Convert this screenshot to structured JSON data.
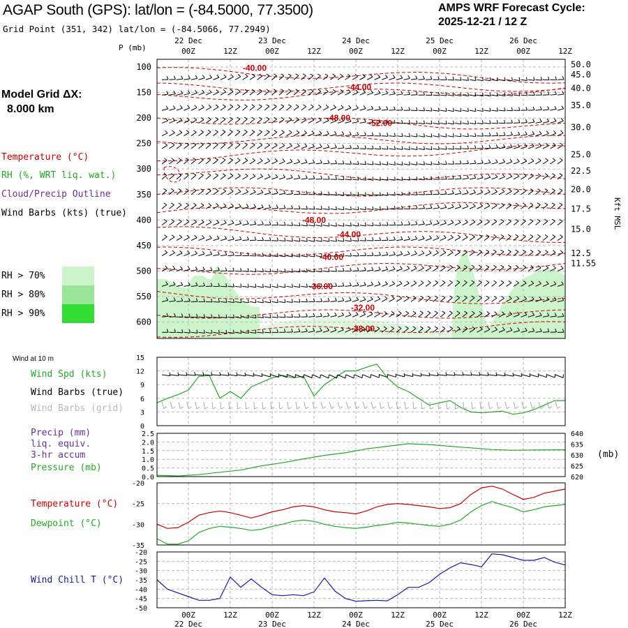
{
  "header": {
    "title": "AGAP South (GPS):  lat/lon = (-84.5000, 77.3500)",
    "grid_point": "Grid Point (351, 342) lat/lon = (-84.5066, 77.2949)",
    "forecast_label": "AMPS WRF Forecast Cycle:",
    "cycle": "2025-12-21 / 12  Z"
  },
  "model": {
    "grid_label": "Model Grid ΔX:",
    "grid_value": "8.000 km"
  },
  "colors": {
    "temperature": "#cc0000",
    "rh": "#22aa22",
    "cloud": "#663399",
    "wind": "#000000",
    "grid_barbs": "#aaaaaa",
    "precip": "#663399",
    "pressure": "#22aa22",
    "dewpoint": "#22aa22",
    "windchill": "#1a1aa0",
    "rh70": "#ccf5cc",
    "rh80": "#99e699",
    "rh90": "#33dd33"
  },
  "legend": {
    "temperature": "Temperature (°C)",
    "rh": "RH (%, WRT liq. wat.)",
    "cloud": "Cloud/Precip Outline",
    "wind": "Wind Barbs (kts) (true)",
    "rh_items": [
      "RH > 70%",
      "RH > 80%",
      "RH > 90%"
    ]
  },
  "chart_data": [
    {
      "type": "heatmap",
      "name": "upper-air time-height cross section",
      "yaxis_title": "P (mb)",
      "pressure_ticks": [
        "100",
        "150",
        "200",
        "250",
        "300",
        "350",
        "400",
        "450",
        "500",
        "550",
        "600"
      ],
      "pressure_range": [
        85,
        632
      ],
      "height_ticks": [
        "50.0",
        "45.0",
        "40.0",
        "35.0",
        "30.0",
        "25.0",
        "22.5",
        "20.0",
        "17.5",
        "15.0",
        "12.5",
        "11.55"
      ],
      "height_tick_pressures": [
        95,
        115,
        142,
        175,
        218,
        272,
        304,
        340,
        378,
        418,
        465,
        485
      ],
      "height_label": "Kft MSL",
      "time_ticks": [
        "00Z",
        "12Z",
        "00Z",
        "12Z",
        "00Z",
        "12Z",
        "00Z",
        "12Z",
        "00Z",
        "12Z"
      ],
      "time_tick_hours": [
        12,
        24,
        36,
        48,
        60,
        72,
        84,
        96,
        108,
        120
      ],
      "date_labels": [
        {
          "hour": 12,
          "text": "22 Dec"
        },
        {
          "hour": 36,
          "text": "23 Dec"
        },
        {
          "hour": 60,
          "text": "24 Dec"
        },
        {
          "hour": 84,
          "text": "25 Dec"
        },
        {
          "hour": 108,
          "text": "26 Dec"
        }
      ],
      "x_range": [
        3,
        120
      ],
      "temperature_labels": [
        {
          "text": "-40.00",
          "hour": 31,
          "p": 102
        },
        {
          "text": "-44.00",
          "hour": 61,
          "p": 140
        },
        {
          "text": "-48.00",
          "hour": 55,
          "p": 200
        },
        {
          "text": "-52.00",
          "hour": 67,
          "p": 210
        },
        {
          "text": "-48.00",
          "hour": 48,
          "p": 400
        },
        {
          "text": "-44.00",
          "hour": 58,
          "p": 428
        },
        {
          "text": "-40.00",
          "hour": 53,
          "p": 473
        },
        {
          "text": "-36.00",
          "hour": 50,
          "p": 530
        },
        {
          "text": "-32.00",
          "hour": 62,
          "p": 572
        },
        {
          "text": "-28.00",
          "hour": 62,
          "p": 613
        }
      ],
      "barb_levels": [
        125,
        155,
        185,
        210,
        235,
        260,
        290,
        320,
        350,
        378,
        410,
        440,
        470,
        500,
        530,
        560,
        590,
        620
      ]
    },
    {
      "type": "line",
      "name": "10 m wind speed",
      "panel_title": "Wind at 10 m",
      "series_label": "Wind Spd (kts)",
      "barbs_true_label": "Wind Barbs (true)",
      "barbs_grid_label": "Wind Barbs (grid)",
      "ylim": [
        0,
        15
      ],
      "yticks": [
        "0",
        "3",
        "6",
        "9",
        "12",
        "15"
      ],
      "hours": [
        3,
        6,
        9,
        12,
        15,
        18,
        21,
        24,
        27,
        30,
        33,
        36,
        39,
        42,
        45,
        48,
        51,
        54,
        57,
        60,
        63,
        66,
        69,
        72,
        75,
        78,
        81,
        84,
        87,
        90,
        93,
        96,
        99,
        102,
        105,
        108,
        111,
        114,
        117,
        120
      ],
      "values": [
        5,
        6,
        6.8,
        7.8,
        10.8,
        11,
        6,
        7.5,
        6,
        8.5,
        9.5,
        10.5,
        11,
        10.5,
        10.8,
        6.5,
        9,
        10.5,
        12,
        12,
        12.8,
        13.5,
        10.5,
        8.5,
        7.5,
        6,
        4.5,
        5,
        5.5,
        4,
        3,
        2.8,
        3,
        3.2,
        2.5,
        2.8,
        3.5,
        4.5,
        5.5,
        5.5
      ]
    },
    {
      "type": "line",
      "name": "precip and pressure",
      "precip_label": "Precip (mm)",
      "precip_label2": "liq. equiv.",
      "precip_label3": "3-hr accum",
      "pressure_label": "Pressure (mb)",
      "unit_label": "(mb)",
      "left_ylim": [
        0,
        2.5
      ],
      "left_ticks": [
        "0.0",
        "0.5",
        "1.0",
        "1.5",
        "2.0",
        "2.5"
      ],
      "right_ylim": [
        620,
        640
      ],
      "right_ticks": [
        "620",
        "625",
        "630",
        "635",
        "640"
      ],
      "hours": [
        3,
        9,
        15,
        21,
        27,
        33,
        39,
        45,
        51,
        57,
        63,
        69,
        75,
        81,
        87,
        93,
        99,
        105,
        111,
        117,
        120
      ],
      "pressure": [
        620.6,
        620.3,
        620.9,
        622,
        623,
        625,
        626.4,
        628.2,
        629.8,
        631,
        632.8,
        634,
        635.2,
        634.8,
        634,
        633.3,
        632.5,
        632.2,
        632.3,
        632.4,
        632.4
      ]
    },
    {
      "type": "line",
      "name": "temperature and dewpoint",
      "temp_label": "Temperature (°C)",
      "dew_label": "Dewpoint (°C)",
      "ylim": [
        -35,
        -20
      ],
      "yticks": [
        "-35",
        "-30",
        "-25",
        "-20"
      ],
      "hours": [
        3,
        6,
        9,
        12,
        15,
        18,
        21,
        24,
        27,
        30,
        33,
        36,
        39,
        42,
        45,
        48,
        51,
        54,
        57,
        60,
        63,
        66,
        69,
        72,
        75,
        78,
        81,
        84,
        87,
        90,
        93,
        96,
        99,
        102,
        105,
        108,
        111,
        114,
        117,
        120
      ],
      "temperature": [
        -30,
        -31,
        -30.8,
        -29.5,
        -27.8,
        -27.2,
        -26.8,
        -27.2,
        -27.8,
        -28.5,
        -27.8,
        -27,
        -26.5,
        -25.8,
        -25.5,
        -25.8,
        -26.5,
        -27,
        -27.2,
        -27.5,
        -26.8,
        -25.8,
        -25.2,
        -25,
        -25.2,
        -25.5,
        -25.8,
        -26.2,
        -26,
        -25,
        -22.8,
        -21.2,
        -20.8,
        -21.5,
        -22.8,
        -24,
        -23.5,
        -22.5,
        -22,
        -21.5
      ],
      "dewpoint": [
        -33.5,
        -34.8,
        -34.8,
        -34,
        -32,
        -31,
        -30.5,
        -30.7,
        -31,
        -31.5,
        -31.2,
        -30.5,
        -30,
        -29.3,
        -29,
        -29.3,
        -30,
        -30.5,
        -30.8,
        -31,
        -30.7,
        -30.3,
        -30,
        -29.5,
        -29.7,
        -30,
        -30.3,
        -30.5,
        -30,
        -29,
        -27,
        -25.5,
        -24.5,
        -25.3,
        -26,
        -27,
        -26.5,
        -25.8,
        -25.5,
        -25.2
      ]
    },
    {
      "type": "line",
      "name": "wind chill",
      "label": "Wind Chill T (°C)",
      "ylim": [
        -50,
        -20
      ],
      "yticks": [
        "-50",
        "-45",
        "-40",
        "-35",
        "-30",
        "-25",
        "-20"
      ],
      "hours": [
        3,
        6,
        9,
        12,
        15,
        18,
        21,
        24,
        27,
        30,
        33,
        36,
        39,
        42,
        45,
        48,
        51,
        54,
        57,
        60,
        63,
        66,
        69,
        72,
        75,
        78,
        81,
        84,
        87,
        90,
        93,
        96,
        99,
        102,
        105,
        108,
        111,
        114,
        117,
        120
      ],
      "values": [
        -35,
        -40,
        -42,
        -44,
        -46,
        -46,
        -45,
        -33.5,
        -39,
        -34.5,
        -39,
        -43,
        -43.5,
        -43,
        -43.5,
        -41.5,
        -34,
        -41,
        -45,
        -46.5,
        -46.2,
        -46,
        -46.3,
        -43,
        -39,
        -39,
        -36.5,
        -32,
        -28.5,
        -25.8,
        -26.8,
        -28,
        -21,
        -21.5,
        -23,
        -24.5,
        -24.5,
        -23,
        -25.5,
        -27
      ]
    }
  ]
}
